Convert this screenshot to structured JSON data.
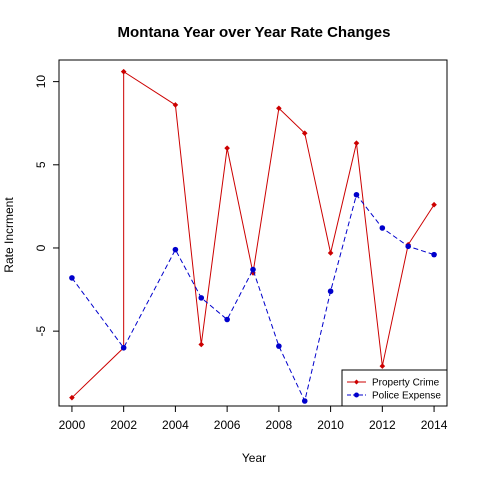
{
  "chart_data": {
    "type": "line",
    "title": "Montana Year over Year Rate Changes",
    "xlabel": "Year",
    "ylabel": "Rate Incrment",
    "xlim": [
      1999.5,
      2014.5
    ],
    "ylim": [
      -9.5,
      11.3
    ],
    "x_ticks": [
      2000,
      2002,
      2004,
      2006,
      2008,
      2010,
      2012,
      2014
    ],
    "y_ticks": [
      -5,
      0,
      5,
      10
    ],
    "legend_position": "bottom-right",
    "grid": false,
    "series": [
      {
        "name": "Property Crime",
        "color": "#cc0000",
        "line_style": "solid",
        "marker": "diamond",
        "points": [
          {
            "x": 2000,
            "y": -9.0
          },
          {
            "x": 2002,
            "y": -6.0
          },
          {
            "x": 2002,
            "y": 10.6
          },
          {
            "x": 2004,
            "y": 8.6
          },
          {
            "x": 2005,
            "y": -5.8
          },
          {
            "x": 2006,
            "y": 6.0
          },
          {
            "x": 2007,
            "y": -1.5
          },
          {
            "x": 2008,
            "y": 8.4
          },
          {
            "x": 2009,
            "y": 6.9
          },
          {
            "x": 2010,
            "y": -0.3
          },
          {
            "x": 2011,
            "y": 6.3
          },
          {
            "x": 2012,
            "y": -7.1
          },
          {
            "x": 2013,
            "y": 0.2
          },
          {
            "x": 2014,
            "y": 2.6
          }
        ]
      },
      {
        "name": "Police Expense",
        "color": "#0000cc",
        "line_style": "dashed",
        "marker": "circle",
        "points": [
          {
            "x": 2000,
            "y": -1.8
          },
          {
            "x": 2002,
            "y": -6.0
          },
          {
            "x": 2004,
            "y": -0.1
          },
          {
            "x": 2005,
            "y": -3.0
          },
          {
            "x": 2006,
            "y": -4.3
          },
          {
            "x": 2007,
            "y": -1.3
          },
          {
            "x": 2008,
            "y": -5.9
          },
          {
            "x": 2009,
            "y": -9.2
          },
          {
            "x": 2010,
            "y": -2.6
          },
          {
            "x": 2011,
            "y": 3.2
          },
          {
            "x": 2012,
            "y": 1.2
          },
          {
            "x": 2013,
            "y": 0.1
          },
          {
            "x": 2014,
            "y": -0.4
          }
        ]
      }
    ]
  }
}
